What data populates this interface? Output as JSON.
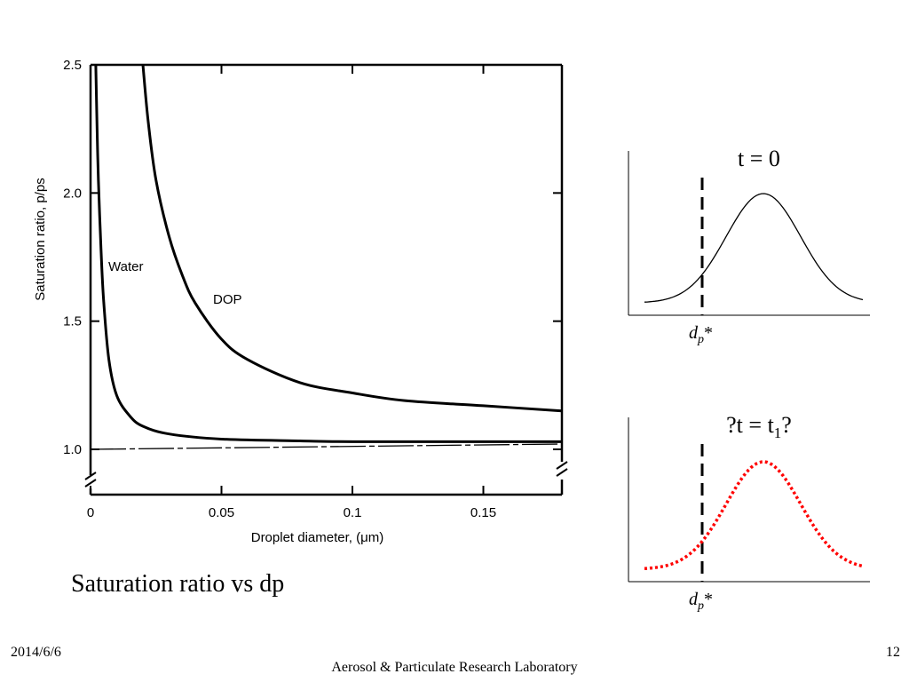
{
  "slide": {
    "caption": "Saturation ratio vs dp",
    "footer_date": "2014/6/6",
    "footer_org": "Aerosol & Particulate Research Laboratory",
    "page_number": "12"
  },
  "chart_data": [
    {
      "type": "line",
      "xlabel": "Droplet diameter, (μm)",
      "ylabel": "Saturation ratio, p/ps",
      "xlim": [
        0,
        0.18
      ],
      "ylim": [
        1.0,
        2.5
      ],
      "x_ticks": [
        "0",
        "0.05",
        "0.1",
        "0.15"
      ],
      "y_ticks": [
        "1.0",
        "1.5",
        "2.0",
        "2.5"
      ],
      "series": [
        {
          "name": "Water",
          "x": [
            0.002,
            0.0025,
            0.003,
            0.004,
            0.005,
            0.007,
            0.01,
            0.015,
            0.02,
            0.03,
            0.05,
            0.08,
            0.1,
            0.15,
            0.18
          ],
          "y": [
            2.5,
            2.25,
            2.05,
            1.78,
            1.58,
            1.35,
            1.21,
            1.13,
            1.09,
            1.06,
            1.04,
            1.033,
            1.03,
            1.03,
            1.03
          ]
        },
        {
          "name": "DOP",
          "x": [
            0.02,
            0.022,
            0.025,
            0.03,
            0.035,
            0.04,
            0.05,
            0.06,
            0.08,
            0.1,
            0.12,
            0.15,
            0.18
          ],
          "y": [
            2.5,
            2.28,
            2.05,
            1.83,
            1.68,
            1.57,
            1.43,
            1.35,
            1.26,
            1.22,
            1.19,
            1.17,
            1.15
          ]
        }
      ],
      "baseline": {
        "y": 1.0,
        "style": "dash-dot"
      }
    },
    {
      "type": "line",
      "title": "t = 0",
      "marker_label": "dp*",
      "series": [
        {
          "style": "solid",
          "color": "#000000"
        }
      ]
    },
    {
      "type": "line",
      "title": "?t = t1?",
      "marker_label": "dp*",
      "series": [
        {
          "style": "dotted",
          "color": "#ff0000"
        }
      ]
    }
  ]
}
